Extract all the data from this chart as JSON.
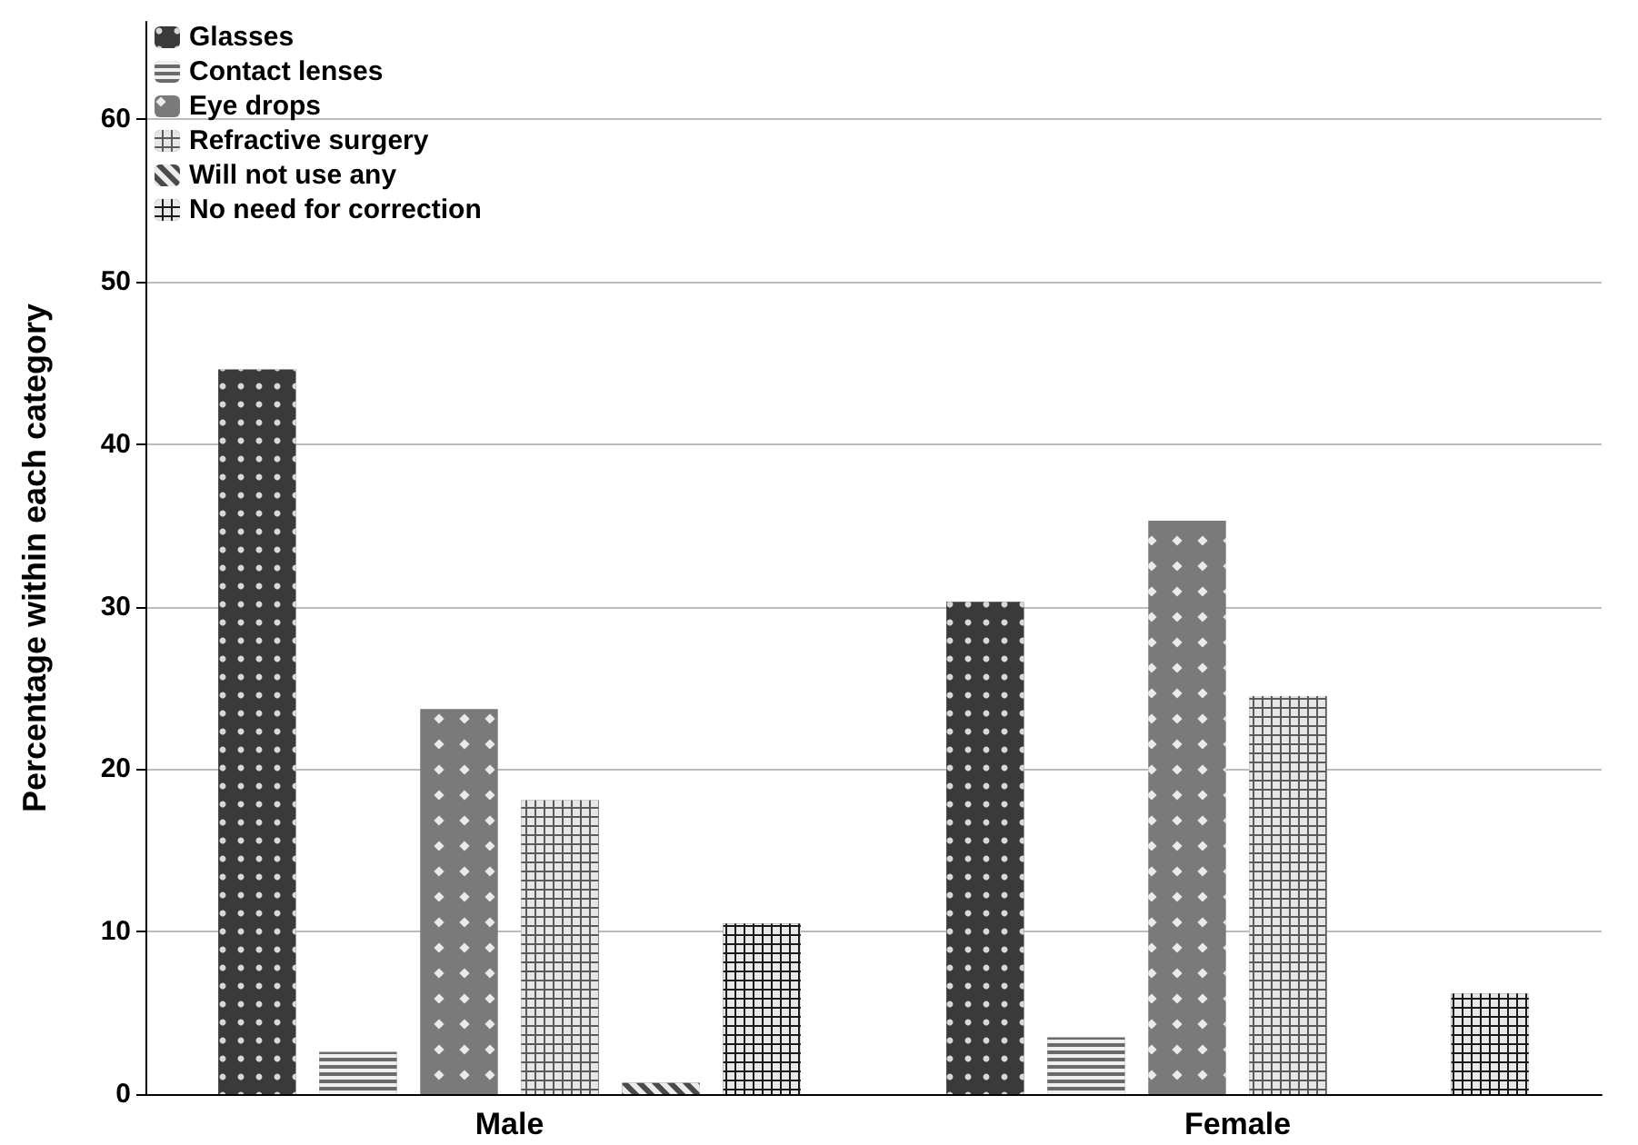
{
  "chart_data": {
    "type": "bar",
    "ylabel": "Percentage within each category",
    "categories": [
      "Male",
      "Female"
    ],
    "series": [
      {
        "name": "Glasses",
        "color": "#3a3a3a",
        "values": [
          44.6,
          30.3
        ]
      },
      {
        "name": "Contact lenses",
        "color": "#6a6a6a",
        "values": [
          2.6,
          3.5
        ]
      },
      {
        "name": "Eye drops",
        "color": "#7a7a7a",
        "values": [
          23.7,
          35.3
        ]
      },
      {
        "name": "Refractive surgery",
        "color": "#5a5a5a",
        "values": [
          18.1,
          24.5
        ]
      },
      {
        "name": "Will not use any",
        "color": "#4a4a4a",
        "values": [
          0.7,
          0
        ]
      },
      {
        "name": "No need for correction",
        "color": "#1a1a1a",
        "values": [
          10.5,
          6.2
        ]
      }
    ],
    "ylim": [
      0,
      66
    ],
    "yticks": [
      0,
      10,
      20,
      30,
      40,
      50,
      60
    ],
    "grid": "y",
    "legend": "top left"
  }
}
